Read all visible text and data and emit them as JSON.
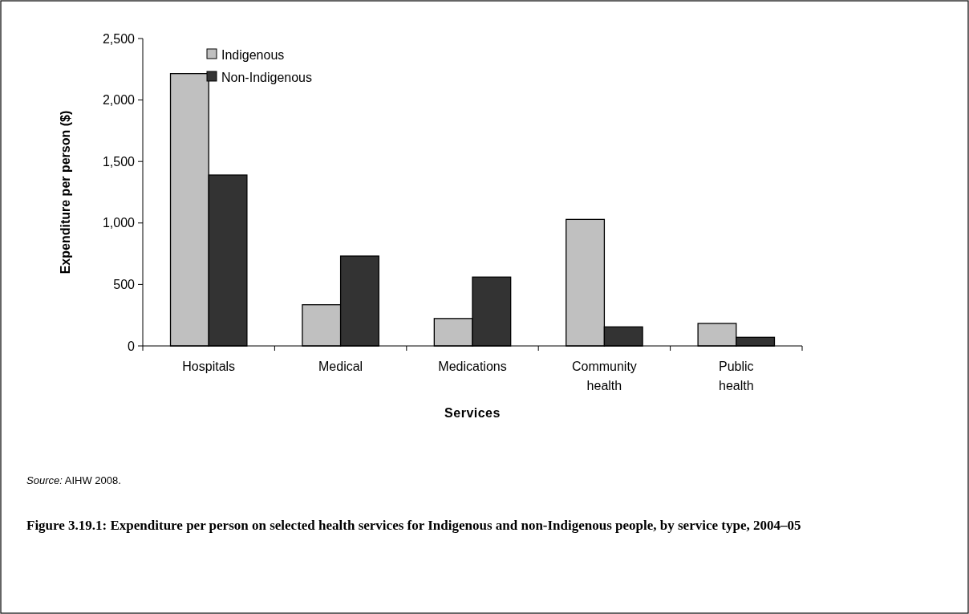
{
  "chart_data": {
    "type": "bar",
    "title": "Figure 3.19.1: Expenditure per person on selected health services for Indigenous and non-Indigenous people, by service type, 2004–05",
    "xlabel": "Services",
    "ylabel": "Expenditure per person ($)",
    "annotations": [
      "Source: AIHW 2008."
    ],
    "categories": [
      "Hospitals",
      "Medical",
      "Medications",
      "Community health",
      "Public health"
    ],
    "series": [
      {
        "name": "Indigenous",
        "color": "#c0c0c0",
        "values": [
          2215,
          335,
          223,
          1029,
          183
        ]
      },
      {
        "name": "Non-Indigenous",
        "color": "#333333",
        "values": [
          1390,
          731,
          560,
          155,
          70
        ]
      }
    ],
    "ylim": [
      0,
      2500
    ],
    "yticks": [
      {
        "value": 0,
        "label": "0"
      },
      {
        "value": 500,
        "label": "500"
      },
      {
        "value": 1000,
        "label": "1,000"
      },
      {
        "value": 1500,
        "label": "1,500"
      },
      {
        "value": 2000,
        "label": "2,000"
      },
      {
        "value": 2500,
        "label": "2,500"
      }
    ],
    "legend": "top left",
    "grid": false
  }
}
